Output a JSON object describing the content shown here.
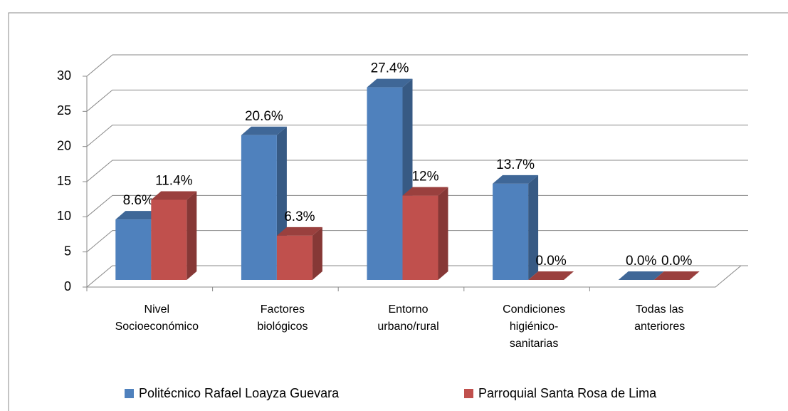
{
  "chart_data": {
    "type": "bar3d",
    "categories": [
      [
        "Nivel",
        "Socioeconómico"
      ],
      [
        "Factores",
        "biológicos"
      ],
      [
        "Entorno",
        "urbano/rural"
      ],
      [
        "Condiciones",
        "higiénico-",
        "sanitarias"
      ],
      [
        "Todas  las",
        "anteriores"
      ]
    ],
    "series": [
      {
        "name": "Politécnico Rafael Loayza Guevara",
        "color": "#4f81bd",
        "values": [
          8.6,
          20.6,
          27.4,
          13.7,
          0.0
        ],
        "value_labels": [
          "8.6%",
          "20.6%",
          "27.4%",
          "13.7%",
          "0.0%"
        ]
      },
      {
        "name": "Parroquial Santa Rosa de Lima",
        "color": "#c0504d",
        "values": [
          11.4,
          6.3,
          12,
          0.0,
          0.0
        ],
        "value_labels": [
          "11.4%",
          "6.3%",
          "12%",
          "0.0%",
          "0.0%"
        ]
      }
    ],
    "ylim": [
      0,
      30
    ],
    "yticks": [
      0,
      5,
      10,
      15,
      20,
      25,
      30
    ],
    "grid": true,
    "legend": "bottom"
  }
}
